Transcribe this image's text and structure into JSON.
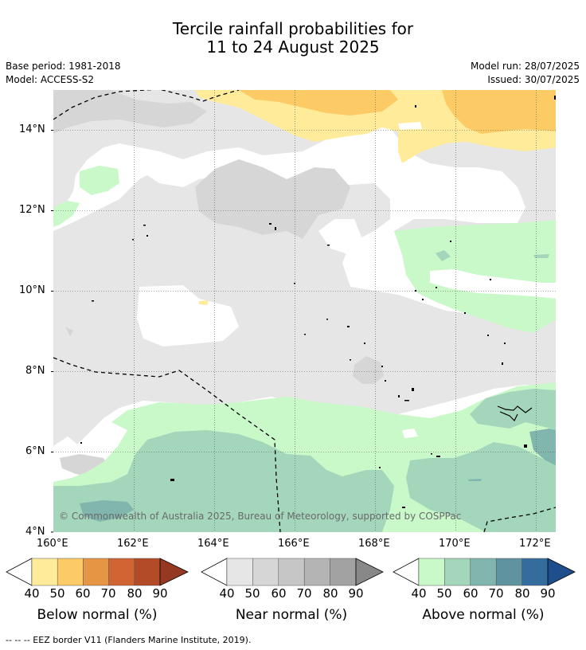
{
  "title_line1": "Tercile rainfall probabilities for",
  "title_line2": "11 to 24 August 2025",
  "base_period": "Base period: 1981-2018",
  "model": "Model: ACCESS-S2",
  "model_run": "Model run: 28/07/2025",
  "issued": "Issued: 30/07/2025",
  "copyright": "© Commonwealth of Australia 2025, Bureau of Meteorology, supported by COSPPac",
  "x_ticks": [
    "160°E",
    "162°E",
    "164°E",
    "166°E",
    "168°E",
    "170°E",
    "172°E"
  ],
  "y_ticks": [
    "14°N",
    "12°N",
    "10°N",
    "8°N",
    "6°N",
    "4°N"
  ],
  "colorbars": [
    {
      "label": "Below normal (%)",
      "ticks": [
        "40",
        "50",
        "60",
        "70",
        "80",
        "90"
      ],
      "colors": [
        "#ffeb99",
        "#fdcb65",
        "#e69545",
        "#d06432",
        "#b34a28",
        "#963922"
      ]
    },
    {
      "label": "Near normal (%)",
      "ticks": [
        "40",
        "50",
        "60",
        "70",
        "80",
        "90"
      ],
      "colors": [
        "#e6e6e6",
        "#d6d6d6",
        "#c6c6c6",
        "#b4b4b4",
        "#a2a2a2",
        "#888888"
      ]
    },
    {
      "label": "Above normal (%)",
      "ticks": [
        "40",
        "50",
        "60",
        "70",
        "80",
        "90"
      ],
      "colors": [
        "#c9f8c9",
        "#a3d6bb",
        "#80b6ad",
        "#5f93a0",
        "#336c9d",
        "#1f4e8c"
      ]
    }
  ],
  "footnote": "--  --  -- EEZ border V11 (Flanders Marine Institute, 2019)."
}
